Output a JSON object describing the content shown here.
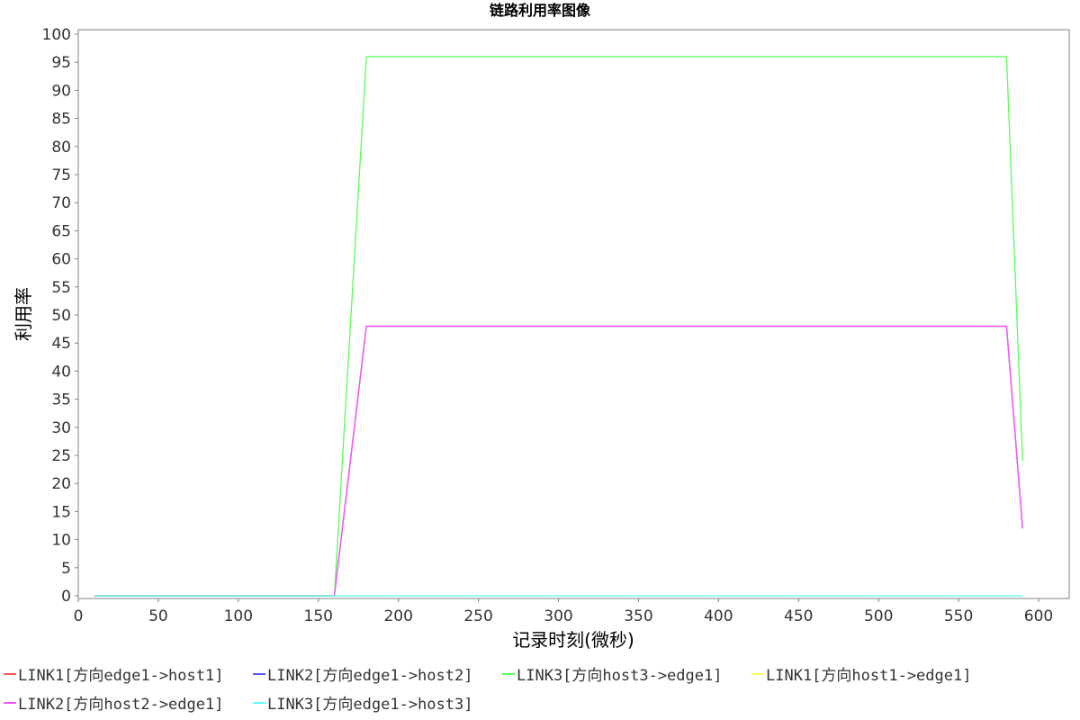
{
  "chart_data": {
    "type": "line",
    "title": "链路利用率图像",
    "xlabel": "记录时刻(微秒)",
    "ylabel": "利用率",
    "xlim": [
      0,
      620
    ],
    "ylim": [
      0,
      100
    ],
    "x_ticks": [
      "0",
      "50",
      "100",
      "150",
      "200",
      "250",
      "300",
      "350",
      "400",
      "450",
      "500",
      "550",
      "600"
    ],
    "y_ticks": [
      "0",
      "5",
      "10",
      "15",
      "20",
      "25",
      "30",
      "35",
      "40",
      "45",
      "50",
      "55",
      "60",
      "65",
      "70",
      "75",
      "80",
      "85",
      "90",
      "95",
      "100"
    ],
    "grid": false,
    "legend_position": "bottom",
    "series": [
      {
        "name": "LINK1[方向edge1->host1]",
        "color": "#ff5555",
        "x": [
          10,
          160,
          180,
          580,
          590
        ],
        "y": [
          0,
          0,
          48,
          48,
          12
        ]
      },
      {
        "name": "LINK2[方向edge1->host2]",
        "color": "#5555ff",
        "x": [
          10,
          160,
          180,
          580,
          590
        ],
        "y": [
          0,
          0,
          48,
          48,
          12
        ]
      },
      {
        "name": "LINK3[方向host3->edge1]",
        "color": "#55ff55",
        "x": [
          10,
          160,
          180,
          580,
          590
        ],
        "y": [
          0,
          0,
          96,
          96,
          24
        ]
      },
      {
        "name": "LINK1[方向host1->edge1]",
        "color": "#ffff55",
        "x": [
          10,
          590
        ],
        "y": [
          0,
          0
        ]
      },
      {
        "name": "LINK2[方向host2->edge1]",
        "color": "#ff55ff",
        "x": [
          10,
          160,
          180,
          580,
          590
        ],
        "y": [
          0,
          0,
          48,
          48,
          12
        ]
      },
      {
        "name": "LINK3[方向edge1->host3]",
        "color": "#55ffff",
        "x": [
          10,
          590
        ],
        "y": [
          0,
          0
        ]
      }
    ]
  }
}
